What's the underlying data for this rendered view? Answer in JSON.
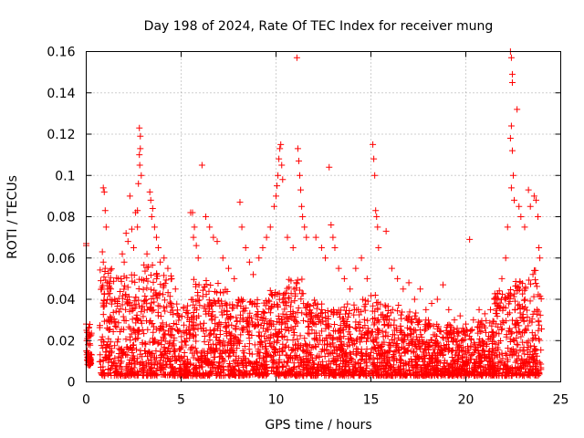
{
  "chart_data": {
    "type": "scatter",
    "title": "Day 198 of 2024, Rate Of TEC Index for receiver mung",
    "xlabel": "GPS time / hours",
    "ylabel": "ROTI / TECUs",
    "xlim": [
      0,
      25
    ],
    "ylim": [
      0,
      0.16
    ],
    "xticks": [
      0,
      5,
      10,
      15,
      20,
      25
    ],
    "xtick_labels": [
      "0",
      "5",
      "10",
      "15",
      "20",
      "25"
    ],
    "yticks": [
      0,
      0.02,
      0.04,
      0.06,
      0.08,
      0.1,
      0.12,
      0.14,
      0.16
    ],
    "ytick_labels": [
      "0",
      "0.02",
      "0.04",
      "0.06",
      "0.08",
      "0.1",
      "0.12",
      "0.14",
      "0.16"
    ],
    "grid": true,
    "marker": "+",
    "color": "#ff0000",
    "series": [
      {
        "name": "ROTI",
        "points": [
          [
            0.0,
            0.067
          ],
          [
            0.0,
            0.066
          ],
          [
            0.0,
            0.028
          ],
          [
            0.02,
            0.025
          ],
          [
            0.03,
            0.02
          ],
          [
            0.05,
            0.015
          ],
          [
            0.07,
            0.012
          ],
          [
            0.1,
            0.018
          ],
          [
            0.12,
            0.022
          ],
          [
            0.15,
            0.013
          ],
          [
            0.9,
            0.094
          ],
          [
            0.95,
            0.092
          ],
          [
            1.0,
            0.083
          ],
          [
            1.05,
            0.075
          ],
          [
            0.85,
            0.063
          ],
          [
            0.9,
            0.058
          ],
          [
            1.0,
            0.055
          ],
          [
            1.1,
            0.048
          ],
          [
            1.3,
            0.045
          ],
          [
            1.5,
            0.04
          ],
          [
            1.7,
            0.05
          ],
          [
            1.9,
            0.062
          ],
          [
            2.0,
            0.058
          ],
          [
            2.1,
            0.072
          ],
          [
            2.2,
            0.068
          ],
          [
            2.3,
            0.09
          ],
          [
            2.4,
            0.074
          ],
          [
            2.5,
            0.065
          ],
          [
            2.6,
            0.082
          ],
          [
            2.7,
            0.075
          ],
          [
            2.8,
            0.123
          ],
          [
            2.85,
            0.119
          ],
          [
            2.85,
            0.113
          ],
          [
            2.8,
            0.11
          ],
          [
            2.82,
            0.105
          ],
          [
            2.9,
            0.1
          ],
          [
            2.75,
            0.096
          ],
          [
            2.7,
            0.083
          ],
          [
            3.2,
            0.062
          ],
          [
            3.35,
            0.092
          ],
          [
            3.4,
            0.088
          ],
          [
            3.5,
            0.084
          ],
          [
            3.45,
            0.08
          ],
          [
            3.6,
            0.075
          ],
          [
            3.7,
            0.07
          ],
          [
            3.8,
            0.065
          ],
          [
            3.9,
            0.058
          ],
          [
            4.1,
            0.06
          ],
          [
            4.3,
            0.055
          ],
          [
            4.5,
            0.05
          ],
          [
            4.7,
            0.045
          ],
          [
            5.5,
            0.082
          ],
          [
            5.6,
            0.082
          ],
          [
            5.7,
            0.075
          ],
          [
            5.65,
            0.07
          ],
          [
            5.8,
            0.066
          ],
          [
            5.9,
            0.06
          ],
          [
            6.1,
            0.105
          ],
          [
            6.3,
            0.08
          ],
          [
            6.5,
            0.075
          ],
          [
            6.7,
            0.07
          ],
          [
            6.9,
            0.068
          ],
          [
            7.2,
            0.06
          ],
          [
            7.5,
            0.055
          ],
          [
            7.8,
            0.05
          ],
          [
            8.1,
            0.087
          ],
          [
            8.2,
            0.075
          ],
          [
            8.4,
            0.065
          ],
          [
            8.6,
            0.058
          ],
          [
            8.8,
            0.052
          ],
          [
            9.1,
            0.06
          ],
          [
            9.3,
            0.065
          ],
          [
            9.5,
            0.07
          ],
          [
            9.7,
            0.075
          ],
          [
            9.9,
            0.085
          ],
          [
            10.0,
            0.09
          ],
          [
            10.05,
            0.095
          ],
          [
            10.1,
            0.1
          ],
          [
            10.15,
            0.108
          ],
          [
            10.2,
            0.113
          ],
          [
            10.25,
            0.115
          ],
          [
            10.3,
            0.105
          ],
          [
            10.35,
            0.098
          ],
          [
            10.6,
            0.07
          ],
          [
            10.9,
            0.065
          ],
          [
            11.1,
            0.157
          ],
          [
            11.15,
            0.113
          ],
          [
            11.2,
            0.107
          ],
          [
            11.25,
            0.1
          ],
          [
            11.3,
            0.093
          ],
          [
            11.35,
            0.085
          ],
          [
            11.4,
            0.08
          ],
          [
            11.5,
            0.075
          ],
          [
            11.6,
            0.07
          ],
          [
            12.1,
            0.07
          ],
          [
            12.4,
            0.065
          ],
          [
            12.6,
            0.06
          ],
          [
            12.8,
            0.104
          ],
          [
            12.9,
            0.076
          ],
          [
            13.0,
            0.07
          ],
          [
            13.1,
            0.065
          ],
          [
            13.3,
            0.055
          ],
          [
            13.6,
            0.05
          ],
          [
            13.9,
            0.045
          ],
          [
            14.2,
            0.055
          ],
          [
            14.5,
            0.06
          ],
          [
            14.8,
            0.05
          ],
          [
            15.1,
            0.115
          ],
          [
            15.15,
            0.108
          ],
          [
            15.2,
            0.1
          ],
          [
            15.25,
            0.083
          ],
          [
            15.3,
            0.08
          ],
          [
            15.35,
            0.075
          ],
          [
            15.4,
            0.065
          ],
          [
            15.8,
            0.073
          ],
          [
            16.1,
            0.055
          ],
          [
            16.4,
            0.05
          ],
          [
            16.7,
            0.045
          ],
          [
            17.0,
            0.048
          ],
          [
            17.3,
            0.04
          ],
          [
            17.6,
            0.045
          ],
          [
            17.9,
            0.035
          ],
          [
            18.2,
            0.038
          ],
          [
            18.5,
            0.04
          ],
          [
            18.8,
            0.047
          ],
          [
            19.1,
            0.035
          ],
          [
            19.4,
            0.03
          ],
          [
            19.7,
            0.032
          ],
          [
            20.0,
            0.028
          ],
          [
            20.2,
            0.069
          ],
          [
            20.4,
            0.03
          ],
          [
            20.7,
            0.035
          ],
          [
            21.0,
            0.033
          ],
          [
            21.3,
            0.035
          ],
          [
            21.6,
            0.04
          ],
          [
            21.9,
            0.05
          ],
          [
            22.1,
            0.06
          ],
          [
            22.2,
            0.075
          ],
          [
            22.35,
            0.16
          ],
          [
            22.4,
            0.157
          ],
          [
            22.45,
            0.149
          ],
          [
            22.45,
            0.145
          ],
          [
            22.4,
            0.124
          ],
          [
            22.35,
            0.118
          ],
          [
            22.45,
            0.112
          ],
          [
            22.5,
            0.1
          ],
          [
            22.4,
            0.094
          ],
          [
            22.55,
            0.088
          ],
          [
            22.7,
            0.132
          ],
          [
            22.8,
            0.085
          ],
          [
            22.9,
            0.08
          ],
          [
            23.1,
            0.075
          ],
          [
            23.3,
            0.093
          ],
          [
            23.4,
            0.085
          ],
          [
            23.6,
            0.09
          ],
          [
            23.7,
            0.088
          ],
          [
            23.8,
            0.08
          ],
          [
            23.85,
            0.065
          ],
          [
            23.9,
            0.06
          ]
        ]
      }
    ],
    "dense_band": [
      {
        "x0": 0.0,
        "x1": 0.3,
        "ymin": 0.008,
        "ymax": 0.028
      },
      {
        "x0": 0.7,
        "x1": 1.5,
        "ymin": 0.003,
        "ymax": 0.055
      },
      {
        "x0": 1.5,
        "x1": 2.5,
        "ymin": 0.003,
        "ymax": 0.052
      },
      {
        "x0": 2.5,
        "x1": 3.5,
        "ymin": 0.003,
        "ymax": 0.06
      },
      {
        "x0": 3.5,
        "x1": 4.5,
        "ymin": 0.003,
        "ymax": 0.055
      },
      {
        "x0": 4.5,
        "x1": 5.5,
        "ymin": 0.003,
        "ymax": 0.038
      },
      {
        "x0": 5.5,
        "x1": 6.5,
        "ymin": 0.003,
        "ymax": 0.05
      },
      {
        "x0": 6.5,
        "x1": 7.5,
        "ymin": 0.003,
        "ymax": 0.048
      },
      {
        "x0": 7.5,
        "x1": 8.5,
        "ymin": 0.003,
        "ymax": 0.04
      },
      {
        "x0": 8.5,
        "x1": 9.5,
        "ymin": 0.003,
        "ymax": 0.04
      },
      {
        "x0": 9.5,
        "x1": 10.5,
        "ymin": 0.003,
        "ymax": 0.045
      },
      {
        "x0": 10.5,
        "x1": 11.5,
        "ymin": 0.003,
        "ymax": 0.05
      },
      {
        "x0": 11.5,
        "x1": 12.5,
        "ymin": 0.003,
        "ymax": 0.04
      },
      {
        "x0": 12.5,
        "x1": 13.5,
        "ymin": 0.003,
        "ymax": 0.035
      },
      {
        "x0": 13.5,
        "x1": 14.5,
        "ymin": 0.003,
        "ymax": 0.038
      },
      {
        "x0": 14.5,
        "x1": 15.5,
        "ymin": 0.003,
        "ymax": 0.042
      },
      {
        "x0": 15.5,
        "x1": 16.5,
        "ymin": 0.003,
        "ymax": 0.038
      },
      {
        "x0": 16.5,
        "x1": 17.5,
        "ymin": 0.003,
        "ymax": 0.034
      },
      {
        "x0": 17.5,
        "x1": 18.5,
        "ymin": 0.003,
        "ymax": 0.03
      },
      {
        "x0": 18.5,
        "x1": 19.5,
        "ymin": 0.003,
        "ymax": 0.028
      },
      {
        "x0": 19.5,
        "x1": 20.5,
        "ymin": 0.003,
        "ymax": 0.026
      },
      {
        "x0": 20.5,
        "x1": 21.5,
        "ymin": 0.003,
        "ymax": 0.03
      },
      {
        "x0": 21.5,
        "x1": 22.5,
        "ymin": 0.003,
        "ymax": 0.045
      },
      {
        "x0": 22.5,
        "x1": 23.5,
        "ymin": 0.003,
        "ymax": 0.05
      },
      {
        "x0": 23.5,
        "x1": 24.0,
        "ymin": 0.003,
        "ymax": 0.055
      }
    ]
  }
}
